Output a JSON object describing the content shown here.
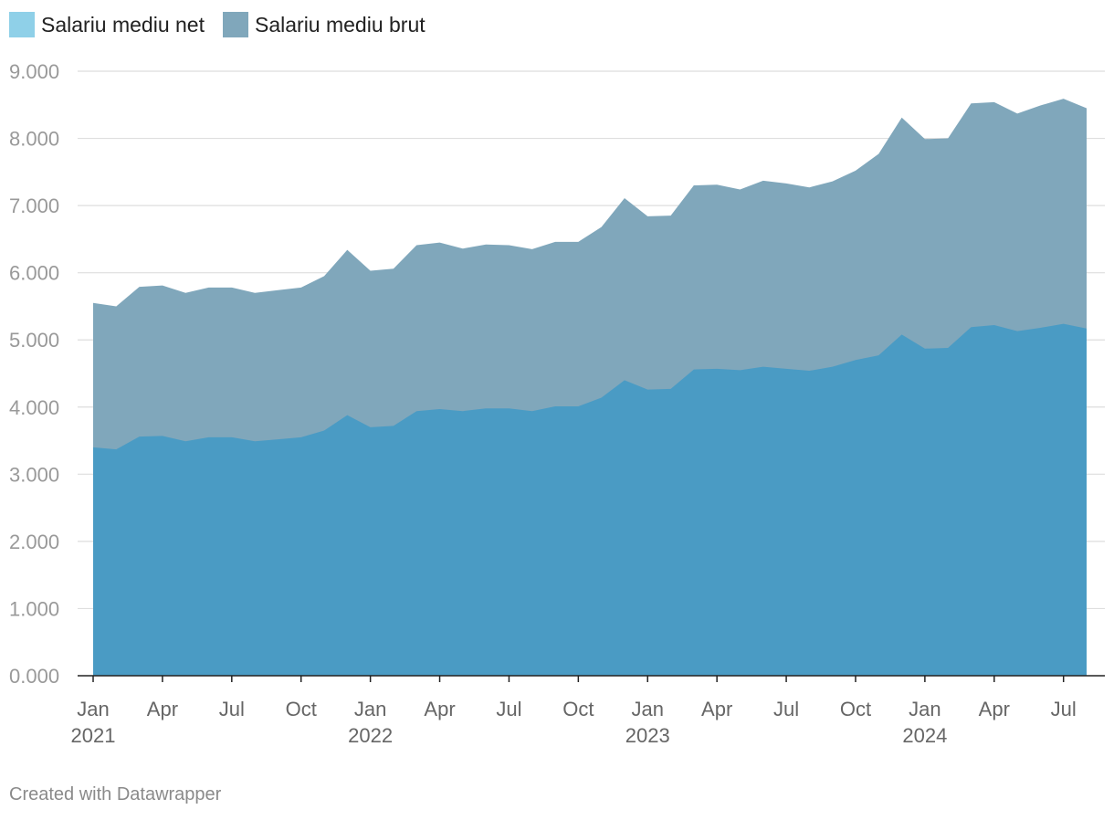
{
  "legend": {
    "net_label": "Salariu mediu net",
    "brut_label": "Salariu mediu brut"
  },
  "colors": {
    "net": "#4a9bc4",
    "net_swatch": "#8fd0e8",
    "brut": "#80a7bb",
    "grid": "#dedede",
    "tick_text": "#999999",
    "x_text": "#666666",
    "axis": "#222222"
  },
  "footer": {
    "credit": "Created with Datawrapper"
  },
  "chart_data": {
    "type": "area",
    "x_start": "2021-01",
    "x_end": "2024-08",
    "x_ticks": [
      {
        "month": "2021-01",
        "label": "Jan",
        "year": "2021"
      },
      {
        "month": "2021-04",
        "label": "Apr"
      },
      {
        "month": "2021-07",
        "label": "Jul"
      },
      {
        "month": "2021-10",
        "label": "Oct"
      },
      {
        "month": "2022-01",
        "label": "Jan",
        "year": "2022"
      },
      {
        "month": "2022-04",
        "label": "Apr"
      },
      {
        "month": "2022-07",
        "label": "Jul"
      },
      {
        "month": "2022-10",
        "label": "Oct"
      },
      {
        "month": "2023-01",
        "label": "Jan",
        "year": "2023"
      },
      {
        "month": "2023-04",
        "label": "Apr"
      },
      {
        "month": "2023-07",
        "label": "Jul"
      },
      {
        "month": "2023-10",
        "label": "Oct"
      },
      {
        "month": "2024-01",
        "label": "Jan",
        "year": "2024"
      },
      {
        "month": "2024-04",
        "label": "Apr"
      },
      {
        "month": "2024-07",
        "label": "Jul"
      }
    ],
    "y_ticks": [
      "0.000",
      "1.000",
      "2.000",
      "3.000",
      "4.000",
      "5.000",
      "6.000",
      "7.000",
      "8.000",
      "9.000"
    ],
    "ylim": [
      0,
      9000
    ],
    "grid": true,
    "legend_position": "top-left",
    "series": [
      {
        "name": "Salariu mediu net",
        "values": [
          3400,
          3370,
          3560,
          3570,
          3490,
          3550,
          3550,
          3490,
          3520,
          3550,
          3650,
          3880,
          3700,
          3720,
          3940,
          3970,
          3940,
          3980,
          3980,
          3940,
          4010,
          4010,
          4140,
          4400,
          4260,
          4270,
          4560,
          4570,
          4550,
          4600,
          4570,
          4540,
          4600,
          4700,
          4770,
          5080,
          4870,
          4880,
          5190,
          5220,
          5130,
          5180,
          5240,
          5170
        ]
      },
      {
        "name": "Salariu mediu brut",
        "values": [
          5550,
          5500,
          5790,
          5810,
          5700,
          5780,
          5780,
          5700,
          5740,
          5780,
          5950,
          6340,
          6030,
          6060,
          6410,
          6450,
          6360,
          6420,
          6410,
          6350,
          6460,
          6460,
          6680,
          7110,
          6840,
          6850,
          7300,
          7310,
          7240,
          7370,
          7330,
          7270,
          7360,
          7520,
          7770,
          8310,
          7990,
          8000,
          8520,
          8540,
          8370,
          8490,
          8590,
          8450
        ]
      }
    ]
  }
}
